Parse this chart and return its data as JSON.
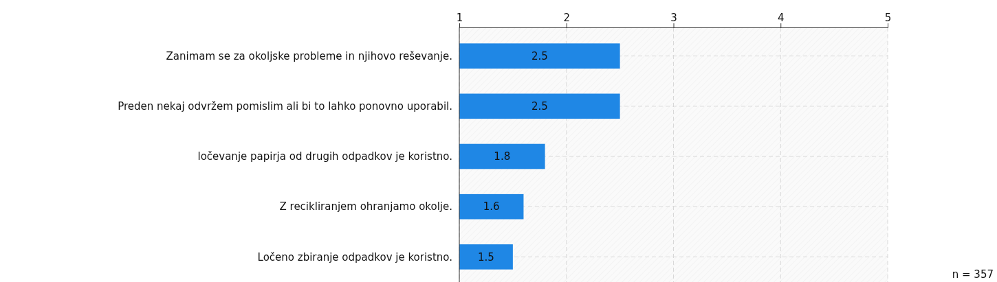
{
  "chart_data": {
    "type": "bar",
    "orientation": "horizontal",
    "categories": [
      "Zanimam se za okoljske probleme in njihovo reševanje.",
      "Preden nekaj odvržem pomislim ali bi to lahko ponovno uporabil.",
      "ločevanje papirja od drugih odpadkov je koristno.",
      "Z recikliranjem ohranjamo okolje.",
      "Ločeno zbiranje odpadkov je koristno."
    ],
    "values": [
      2.5,
      2.5,
      1.8,
      1.6,
      1.5
    ],
    "color": "#1f87e5",
    "xlim": [
      1,
      5
    ],
    "xticks": [
      1,
      2,
      3,
      4,
      5
    ],
    "grid": true,
    "data_labels": true,
    "annotations": [
      "n = 357"
    ]
  }
}
